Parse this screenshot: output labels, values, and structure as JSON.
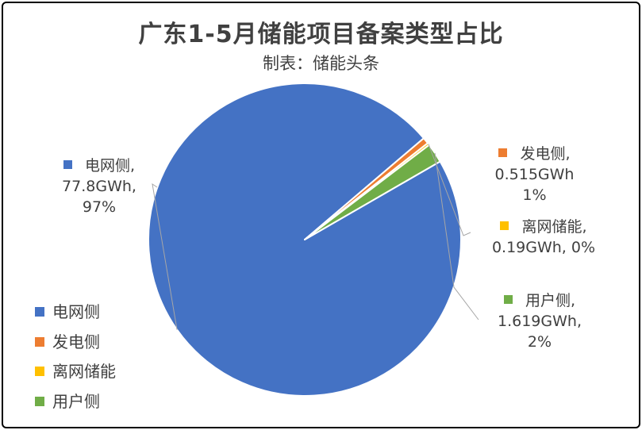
{
  "chart_data": {
    "type": "pie",
    "title": "广东1-5月储能项目备案类型占比",
    "subtitle": "制表：储能头条",
    "start_angle_deg": 60,
    "slices": [
      {
        "name": "电网侧",
        "value": 77.8,
        "value_label": "77.8GWh,",
        "percent_label": "97%",
        "color": "#4472C4"
      },
      {
        "name": "发电侧",
        "value": 0.515,
        "value_label": "0.515GWh",
        "percent_label": "1%",
        "color": "#ED7D31"
      },
      {
        "name": "离网储能",
        "value": 0.19,
        "value_label": "0.19GWh, 0%",
        "percent_label": "",
        "color": "#FFC000"
      },
      {
        "name": "用户侧",
        "value": 1.619,
        "value_label": "1.619GWh,",
        "percent_label": "2%",
        "color": "#70AD47"
      }
    ],
    "legend_position": "bottom-left"
  }
}
